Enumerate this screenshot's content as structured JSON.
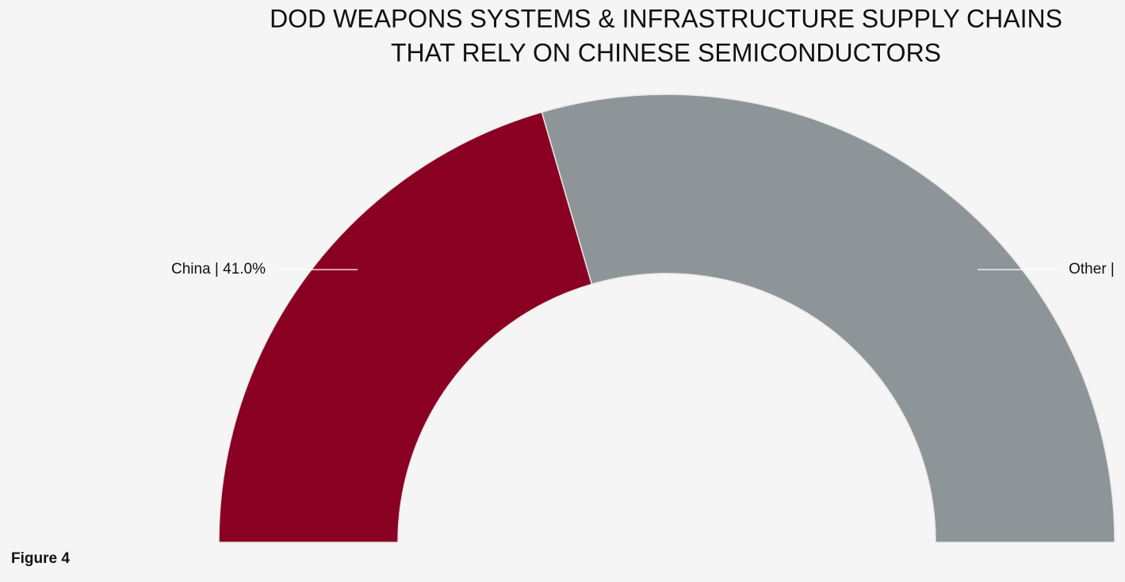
{
  "chart_data": {
    "type": "semi-donut",
    "title": [
      "DOD WEAPONS SYSTEMS & INFRASTRUCTURE SUPPLY CHAINS",
      "THAT RELY ON CHINESE SEMICONDUCTORS"
    ],
    "categories": [
      "China",
      "Other"
    ],
    "values": [
      41.0,
      59.0
    ],
    "value_labels": [
      "China | 41.0%",
      "Other |"
    ],
    "colors": [
      "#8a0022",
      "#8e9598"
    ],
    "caption": "Figure 4"
  }
}
